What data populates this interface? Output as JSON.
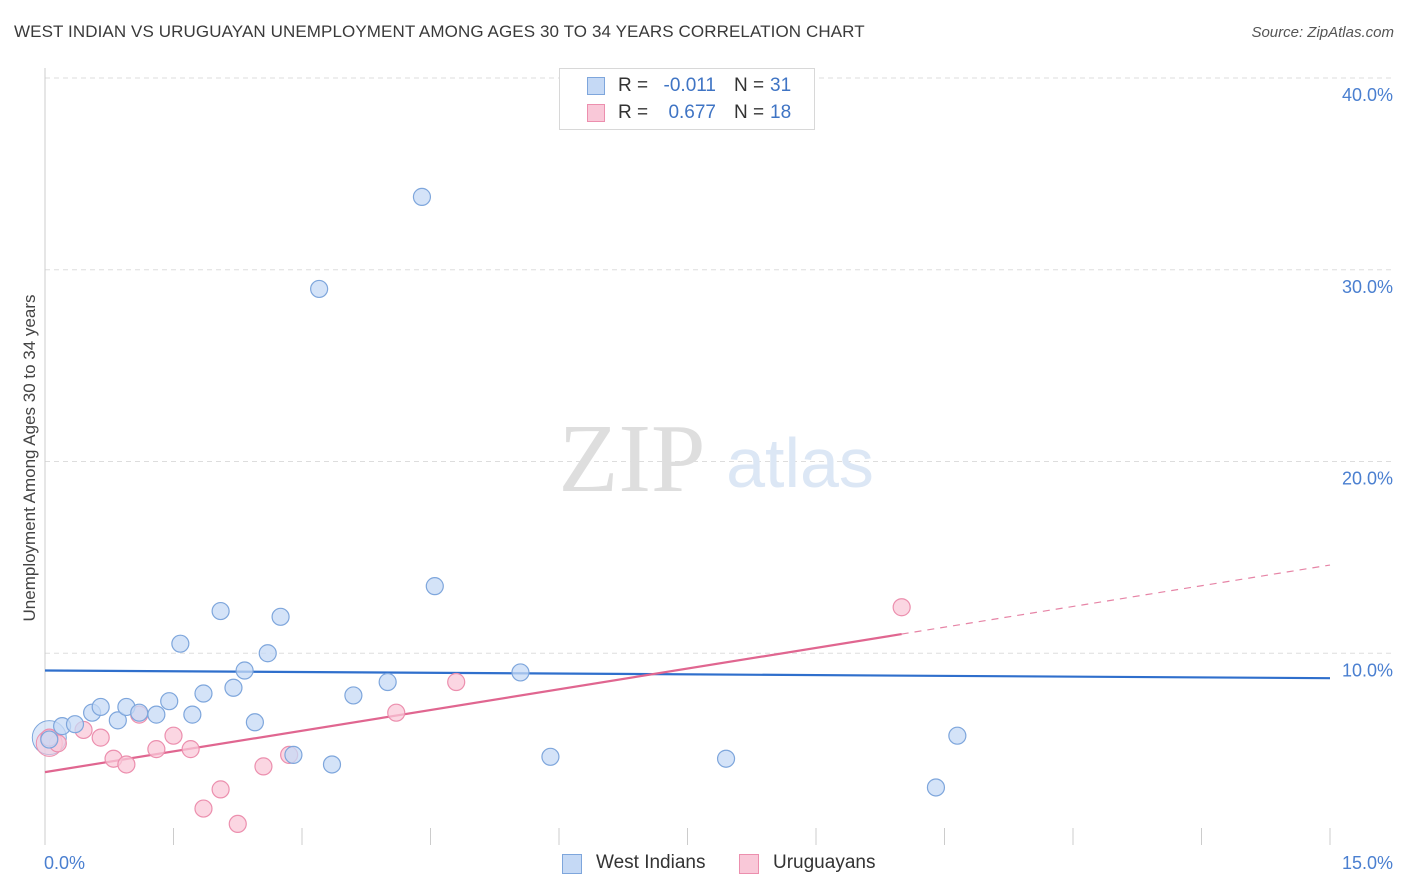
{
  "header": {
    "title": "WEST INDIAN VS URUGUAYAN UNEMPLOYMENT AMONG AGES 30 TO 34 YEARS CORRELATION CHART",
    "source": "Source: ZipAtlas.com"
  },
  "watermark": {
    "zip": "ZIP",
    "atlas": "atlas"
  },
  "legend": {
    "r_label": "R =",
    "n_label": "N =",
    "rows": [
      {
        "r": "-0.011",
        "n": "31"
      },
      {
        "r": "0.677",
        "n": "18"
      }
    ]
  },
  "colors": {
    "blue_fill": "#c5d9f5",
    "blue_stroke": "#7ea6dc",
    "blue_line": "#2f6fcc",
    "pink_fill": "#f9c8d8",
    "pink_stroke": "#ec8fae",
    "pink_line": "#e06690",
    "axis_text": "#4a7fd0",
    "grid": "#dddddd"
  },
  "chart_data": {
    "type": "scatter",
    "title": "WEST INDIAN VS URUGUAYAN UNEMPLOYMENT AMONG AGES 30 TO 34 YEARS CORRELATION CHART",
    "xlabel": "",
    "ylabel": "Unemployment Among Ages 30 to 34 years",
    "xlim": [
      0,
      15
    ],
    "ylim": [
      0,
      40
    ],
    "x_tick_labels": [
      "0.0%",
      "15.0%"
    ],
    "y_ticks": [
      10,
      20,
      30,
      40
    ],
    "y_tick_labels": [
      "10.0%",
      "20.0%",
      "30.0%",
      "40.0%"
    ],
    "x_minor_ticks": [
      1.5,
      3.0,
      4.5,
      6.0,
      7.5,
      9.0,
      10.5,
      12.0,
      13.5,
      15.0
    ],
    "grid": true,
    "series": [
      {
        "name": "West Indians",
        "points": [
          [
            0.05,
            5.5
          ],
          [
            0.2,
            6.2
          ],
          [
            0.35,
            6.3
          ],
          [
            0.55,
            6.9
          ],
          [
            0.65,
            7.2
          ],
          [
            0.85,
            6.5
          ],
          [
            0.95,
            7.2
          ],
          [
            1.1,
            6.9
          ],
          [
            1.3,
            6.8
          ],
          [
            1.45,
            7.5
          ],
          [
            1.58,
            10.5
          ],
          [
            1.72,
            6.8
          ],
          [
            1.85,
            7.9
          ],
          [
            2.05,
            12.2
          ],
          [
            2.2,
            8.2
          ],
          [
            2.33,
            9.1
          ],
          [
            2.45,
            6.4
          ],
          [
            2.6,
            10.0
          ],
          [
            2.75,
            11.9
          ],
          [
            2.9,
            4.7
          ],
          [
            3.2,
            29.0
          ],
          [
            3.35,
            4.2
          ],
          [
            3.6,
            7.8
          ],
          [
            4.0,
            8.5
          ],
          [
            4.4,
            33.8
          ],
          [
            4.55,
            13.5
          ],
          [
            5.55,
            9.0
          ],
          [
            5.9,
            4.6
          ],
          [
            7.95,
            4.5
          ],
          [
            10.4,
            3.0
          ],
          [
            10.65,
            5.7
          ]
        ],
        "trend": {
          "x": [
            0,
            15
          ],
          "y": [
            9.1,
            8.7
          ]
        }
      },
      {
        "name": "Uruguayans",
        "points": [
          [
            0.15,
            5.3
          ],
          [
            0.45,
            6.0
          ],
          [
            0.65,
            5.6
          ],
          [
            0.8,
            4.5
          ],
          [
            0.95,
            4.2
          ],
          [
            1.1,
            6.8
          ],
          [
            1.3,
            5.0
          ],
          [
            1.5,
            5.7
          ],
          [
            1.7,
            5.0
          ],
          [
            1.85,
            1.9
          ],
          [
            2.05,
            2.9
          ],
          [
            2.25,
            1.1
          ],
          [
            2.55,
            4.1
          ],
          [
            2.85,
            4.7
          ],
          [
            4.1,
            6.9
          ],
          [
            4.8,
            8.5
          ],
          [
            10.0,
            12.4
          ],
          [
            0.05,
            5.6
          ]
        ],
        "trend": {
          "x": [
            0,
            10.0
          ],
          "y": [
            3.8,
            11.0
          ]
        },
        "trend_dashed": {
          "x": [
            10.0,
            15
          ],
          "y": [
            11.0,
            14.6
          ]
        }
      }
    ]
  }
}
